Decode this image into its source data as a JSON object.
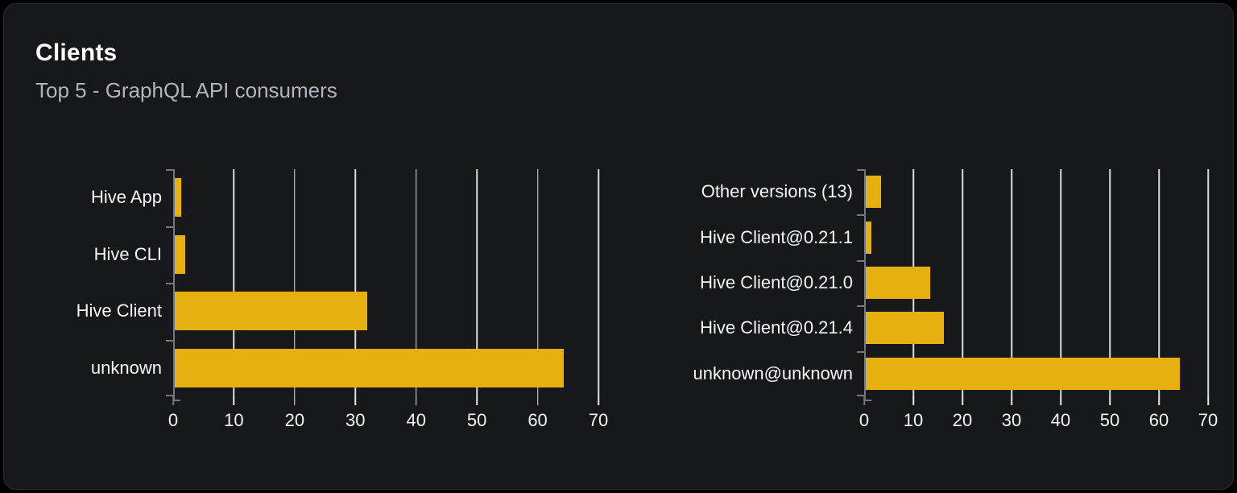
{
  "card": {
    "title": "Clients",
    "subtitle": "Top 5 - GraphQL API consumers"
  },
  "colors": {
    "page_bg": "#000000",
    "card_bg": "#16181c",
    "card_border": "#2b2e35",
    "title": "#ffffff",
    "subtitle": "#b0b5bb",
    "bar": "#e6b10e",
    "gridline": "#d8dbe0",
    "axis": "#73777e",
    "tick_label": "#f2f4f6",
    "category_label": "#f5f6f7"
  },
  "chart_data": [
    {
      "type": "bar",
      "orientation": "horizontal",
      "name": "clients-by-name",
      "categories": [
        "Hive App",
        "Hive CLI",
        "Hive Client",
        "unknown"
      ],
      "values": [
        1.3,
        2,
        32,
        64.3
      ],
      "xlim": [
        0,
        70
      ],
      "xticks": [
        0,
        10,
        20,
        30,
        40,
        50,
        60,
        70
      ],
      "grid": "vertical",
      "legend": false
    },
    {
      "type": "bar",
      "orientation": "horizontal",
      "name": "clients-by-version",
      "categories": [
        "Other versions (13)",
        "Hive Client@0.21.1",
        "Hive Client@0.21.0",
        "Hive Client@0.21.4",
        "unknown@unknown"
      ],
      "values": [
        3.5,
        1.5,
        13.5,
        16.2,
        64.3
      ],
      "xlim": [
        0,
        70
      ],
      "xticks": [
        0,
        10,
        20,
        30,
        40,
        50,
        60,
        70
      ],
      "grid": "vertical",
      "legend": false
    }
  ]
}
